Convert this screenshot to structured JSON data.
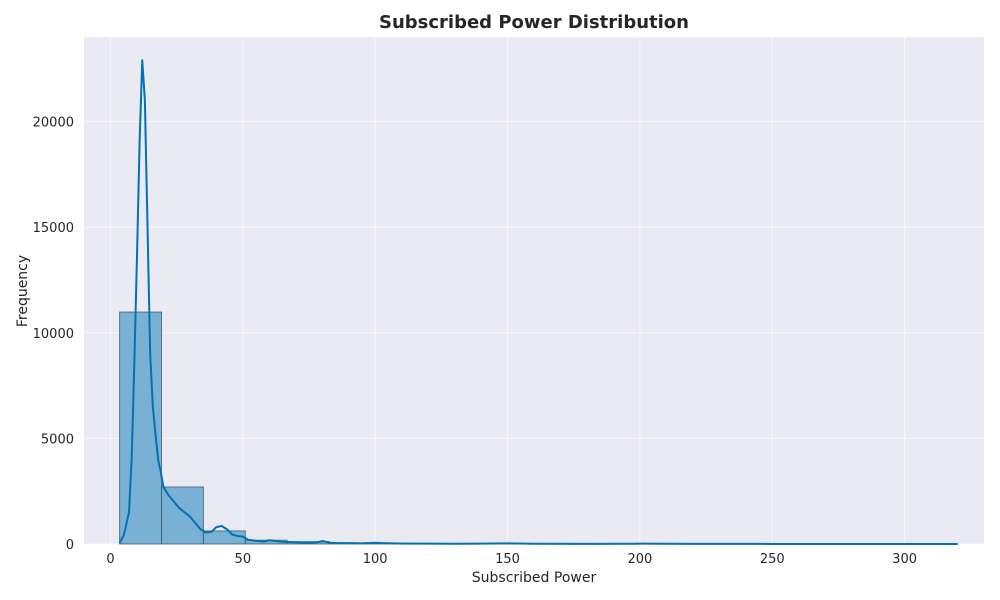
{
  "chart_data": {
    "type": "bar",
    "title": "Subscribed Power Distribution",
    "xlabel": "Subscribed Power",
    "ylabel": "Frequency",
    "xlim": [
      -10,
      330
    ],
    "ylim": [
      0,
      24000
    ],
    "x_ticks": [
      0,
      50,
      100,
      150,
      200,
      250,
      300
    ],
    "y_ticks": [
      0,
      5000,
      10000,
      15000,
      20000
    ],
    "grid": true,
    "legend": "none",
    "colors": {
      "background": "#eaeaf2",
      "grid": "#ffffff",
      "bar_fill": "#79b1d5",
      "bar_edge": "#2f4f62",
      "kde_line": "#0173b2"
    },
    "histogram": {
      "bins": [
        {
          "x0": 3.45,
          "x1": 19.28,
          "count": 10980
        },
        {
          "x0": 19.28,
          "x1": 35.11,
          "count": 2700
        },
        {
          "x0": 35.11,
          "x1": 50.94,
          "count": 620
        },
        {
          "x0": 50.94,
          "x1": 66.77,
          "count": 180
        },
        {
          "x0": 66.77,
          "x1": 82.6,
          "count": 110
        },
        {
          "x0": 82.6,
          "x1": 98.43,
          "count": 40
        },
        {
          "x0": 98.43,
          "x1": 114.26,
          "count": 40
        },
        {
          "x0": 114.26,
          "x1": 130.09,
          "count": 10
        },
        {
          "x0": 130.09,
          "x1": 145.92,
          "count": 5
        },
        {
          "x0": 145.92,
          "x1": 161.75,
          "count": 15
        },
        {
          "x0": 161.75,
          "x1": 177.58,
          "count": 3
        },
        {
          "x0": 177.58,
          "x1": 193.41,
          "count": 2
        },
        {
          "x0": 193.41,
          "x1": 209.24,
          "count": 8
        },
        {
          "x0": 209.24,
          "x1": 225.07,
          "count": 2
        },
        {
          "x0": 225.07,
          "x1": 240.9,
          "count": 1
        },
        {
          "x0": 240.9,
          "x1": 256.73,
          "count": 2
        },
        {
          "x0": 256.73,
          "x1": 272.56,
          "count": 1
        },
        {
          "x0": 272.56,
          "x1": 288.39,
          "count": 1
        },
        {
          "x0": 288.39,
          "x1": 304.22,
          "count": 1
        },
        {
          "x0": 304.22,
          "x1": 320.05,
          "count": 1
        }
      ]
    },
    "kde": {
      "x": [
        3.45,
        5,
        7,
        8,
        9,
        10,
        11,
        12,
        13,
        14,
        15,
        16,
        17,
        18,
        19,
        20,
        22,
        24,
        26,
        28,
        30,
        32,
        34,
        36,
        38,
        40,
        42,
        44,
        46,
        48,
        50,
        52,
        55,
        58,
        60,
        65,
        70,
        75,
        78,
        80,
        83,
        86,
        90,
        95,
        100,
        103,
        110,
        120,
        130,
        140,
        150,
        160,
        180,
        200,
        220,
        250,
        280,
        300,
        320
      ],
      "y": [
        50,
        400,
        1500,
        4000,
        8500,
        13500,
        19000,
        22900,
        21000,
        15000,
        9000,
        6500,
        5200,
        4000,
        3400,
        2700,
        2300,
        2000,
        1700,
        1500,
        1300,
        1000,
        700,
        550,
        560,
        800,
        850,
        700,
        450,
        380,
        350,
        200,
        150,
        120,
        180,
        100,
        80,
        60,
        80,
        140,
        60,
        40,
        40,
        30,
        60,
        40,
        20,
        15,
        10,
        15,
        30,
        10,
        5,
        15,
        5,
        3,
        2,
        2,
        0
      ]
    }
  }
}
